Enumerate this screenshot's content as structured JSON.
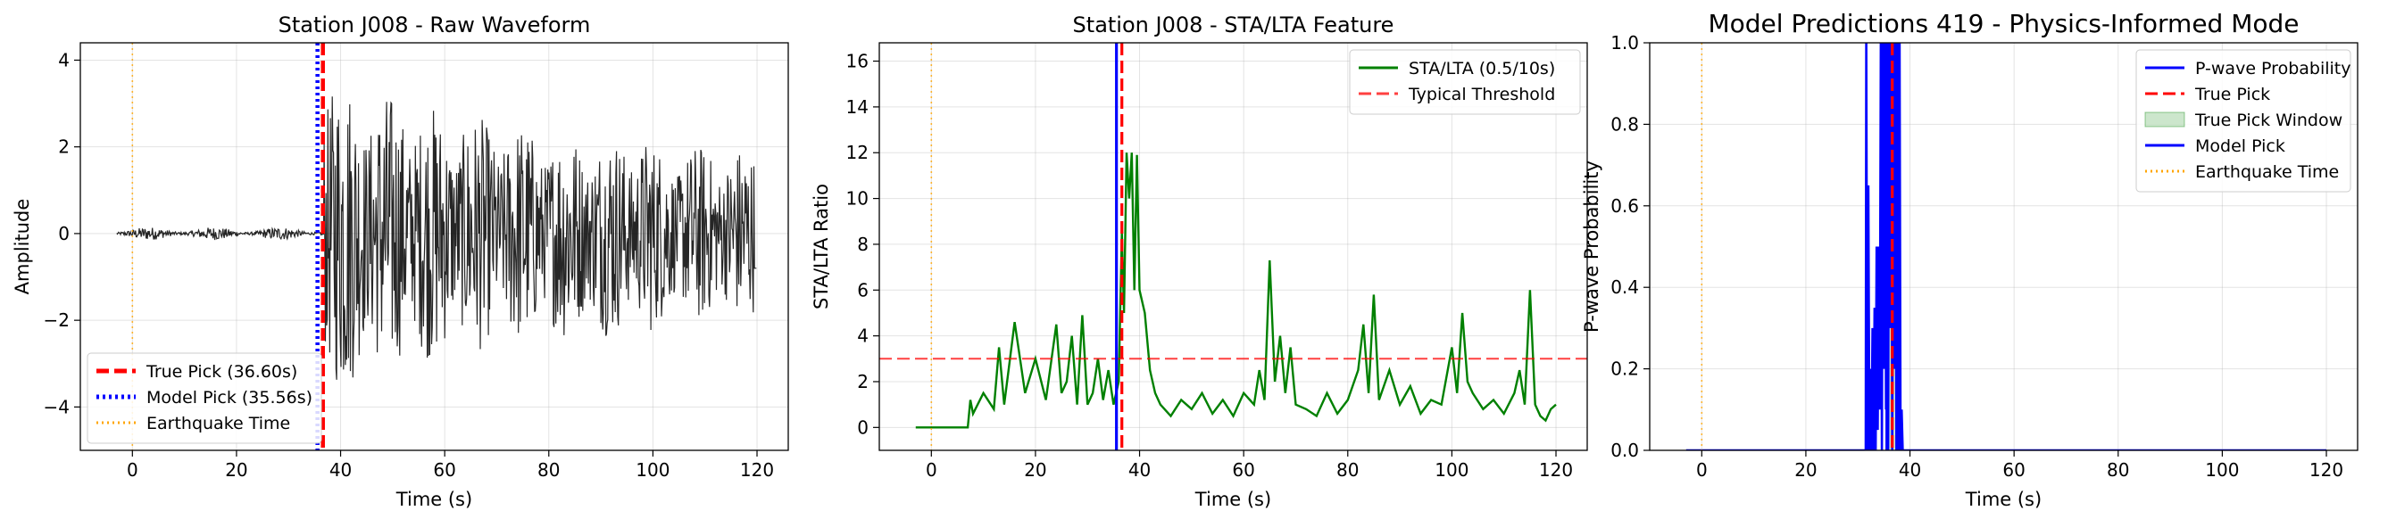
{
  "chart_data": [
    {
      "type": "line",
      "title": "Station J008 - Raw Waveform",
      "xlabel": "Time (s)",
      "ylabel": "Amplitude",
      "xlim": [
        -10,
        126
      ],
      "ylim": [
        -5.0,
        4.4
      ],
      "xticks": [
        0,
        20,
        40,
        60,
        80,
        100,
        120
      ],
      "yticks": [
        -4,
        -2,
        0,
        2,
        4
      ],
      "grid": true,
      "legend_position": "lower-left",
      "series": [
        {
          "name": "",
          "color": "#000000",
          "kind": "waveform",
          "x_range": [
            -3,
            120
          ],
          "noise_amplitude": 0.15,
          "onset": 36.6,
          "peak_amplitude": 4.0
        }
      ],
      "vlines": [
        {
          "name": "True Pick (36.60s)",
          "x": 36.6,
          "color": "#ff0000",
          "style": "dashed",
          "width": "thick"
        },
        {
          "name": "Model Pick (35.56s)",
          "x": 35.56,
          "color": "#0000ff",
          "style": "dotted",
          "width": "thick"
        },
        {
          "name": "Earthquake Time",
          "x": 0,
          "color": "#ffa500",
          "style": "dotted",
          "width": "thin"
        }
      ]
    },
    {
      "type": "line",
      "title": "Station J008 - STA/LTA Feature",
      "xlabel": "Time (s)",
      "ylabel": "STA/LTA Ratio",
      "xlim": [
        -10,
        126
      ],
      "ylim": [
        -1.0,
        16.8
      ],
      "xticks": [
        0,
        20,
        40,
        60,
        80,
        100,
        120
      ],
      "yticks": [
        0,
        2,
        4,
        6,
        8,
        10,
        12,
        14,
        16
      ],
      "grid": true,
      "legend_position": "top-right",
      "series": [
        {
          "name": "STA/LTA (0.5/10s)",
          "color": "#008000",
          "x": [
            -3,
            7,
            7.5,
            8,
            10,
            12,
            13,
            14,
            16,
            18,
            20,
            22,
            24,
            25,
            26,
            27,
            28,
            29,
            30,
            31,
            32,
            33,
            34,
            35,
            36,
            36.6,
            37,
            37.5,
            38,
            38.5,
            39,
            39.5,
            40,
            41,
            42,
            43,
            44,
            46,
            48,
            50,
            52,
            54,
            56,
            58,
            60,
            62,
            63,
            64,
            65,
            66,
            67,
            68,
            69,
            70,
            72,
            74,
            76,
            78,
            80,
            82,
            83,
            84,
            85,
            86,
            88,
            90,
            92,
            94,
            96,
            98,
            100,
            101,
            102,
            103,
            104,
            106,
            108,
            110,
            112,
            113,
            114,
            115,
            116,
            117,
            118,
            119,
            120
          ],
          "values": [
            0,
            0,
            1.2,
            0.6,
            1.5,
            0.8,
            3.5,
            1.0,
            4.6,
            1.5,
            3.0,
            1.2,
            4.5,
            1.5,
            2.0,
            4.0,
            1.0,
            4.9,
            1.0,
            1.5,
            3.0,
            1.2,
            2.5,
            1.0,
            2.0,
            8.5,
            5.0,
            12.0,
            10.0,
            12.0,
            6.0,
            11.9,
            6.0,
            5.0,
            2.5,
            1.5,
            1.0,
            0.5,
            1.2,
            0.8,
            1.5,
            0.6,
            1.2,
            0.5,
            1.5,
            1.0,
            2.5,
            1.2,
            7.3,
            2.0,
            4.0,
            1.5,
            3.5,
            1.0,
            0.8,
            0.5,
            1.5,
            0.6,
            1.2,
            2.5,
            4.5,
            1.5,
            5.8,
            1.2,
            2.5,
            1.0,
            1.8,
            0.6,
            1.2,
            1.0,
            3.5,
            1.5,
            5.0,
            2.0,
            1.5,
            0.8,
            1.2,
            0.6,
            1.5,
            2.5,
            1.0,
            6.0,
            1.0,
            0.5,
            0.3,
            0.8,
            1.0
          ]
        }
      ],
      "hlines": [
        {
          "name": "Typical Threshold",
          "y": 3,
          "color": "#ff0000",
          "style": "dashed"
        }
      ],
      "vlines": [
        {
          "name": "",
          "x": 35.56,
          "color": "#0000ff",
          "style": "solid"
        },
        {
          "name": "",
          "x": 36.6,
          "color": "#ff0000",
          "style": "dashed"
        },
        {
          "name": "",
          "x": 0,
          "color": "#ffa500",
          "style": "dotted"
        }
      ]
    },
    {
      "type": "line",
      "title": "Model Predictions 419 - Physics-Informed Mode",
      "xlabel": "Time (s)",
      "ylabel": "P-wave Probability",
      "xlim": [
        -10,
        126
      ],
      "ylim": [
        0,
        1.0
      ],
      "xticks": [
        0,
        20,
        40,
        60,
        80,
        100,
        120
      ],
      "yticks": [
        0.0,
        0.2,
        0.4,
        0.6,
        0.8,
        1.0
      ],
      "grid": true,
      "legend_position": "top-right",
      "series": [
        {
          "name": "P-wave Probability",
          "color": "#0000ff",
          "x": [
            -3,
            31.5,
            31.6,
            31.8,
            32.0,
            32.2,
            32.4,
            32.6,
            32.8,
            33.0,
            33.2,
            33.4,
            33.6,
            33.8,
            34.0,
            34.2,
            34.4,
            34.6,
            34.8,
            35.0,
            35.2,
            35.4,
            35.6,
            35.8,
            36.0,
            36.2,
            36.4,
            36.6,
            36.8,
            37.0,
            37.2,
            37.4,
            37.6,
            37.8,
            38.0,
            38.2,
            38.4,
            38.6,
            120
          ],
          "values": [
            0,
            0,
            1.0,
            0.0,
            0.65,
            0.0,
            0.2,
            0.0,
            0.3,
            0.0,
            0.35,
            0.0,
            0.5,
            0.05,
            0.5,
            0.1,
            1.0,
            0.0,
            1.0,
            0.2,
            1.0,
            0.1,
            1.0,
            0.0,
            1.0,
            0.3,
            1.0,
            0.0,
            1.0,
            0.2,
            1.0,
            0.0,
            1.0,
            0.0,
            1.0,
            0.0,
            0.1,
            0.0,
            0
          ]
        }
      ],
      "legend_entries": [
        {
          "name": "P-wave Probability",
          "color": "#0000ff",
          "style": "solid"
        },
        {
          "name": "True Pick",
          "color": "#ff0000",
          "style": "dashed"
        },
        {
          "name": "True Pick Window",
          "color": "#008000",
          "style": "patch"
        },
        {
          "name": "Model Pick",
          "color": "#0000ff",
          "style": "solid"
        },
        {
          "name": "Earthquake Time",
          "color": "#ffa500",
          "style": "dotted"
        }
      ],
      "spans": [
        {
          "name": "True Pick Window",
          "x0": 35.6,
          "x1": 37.6,
          "color": "#008000",
          "alpha": 0.2
        }
      ],
      "vlines": [
        {
          "name": "True Pick",
          "x": 36.6,
          "color": "#ff0000",
          "style": "dashed"
        },
        {
          "name": "Model Pick",
          "x": 35.56,
          "color": "#0000ff",
          "style": "solid"
        },
        {
          "name": "Earthquake Time",
          "x": 0,
          "color": "#ffa500",
          "style": "dotted"
        }
      ]
    }
  ]
}
